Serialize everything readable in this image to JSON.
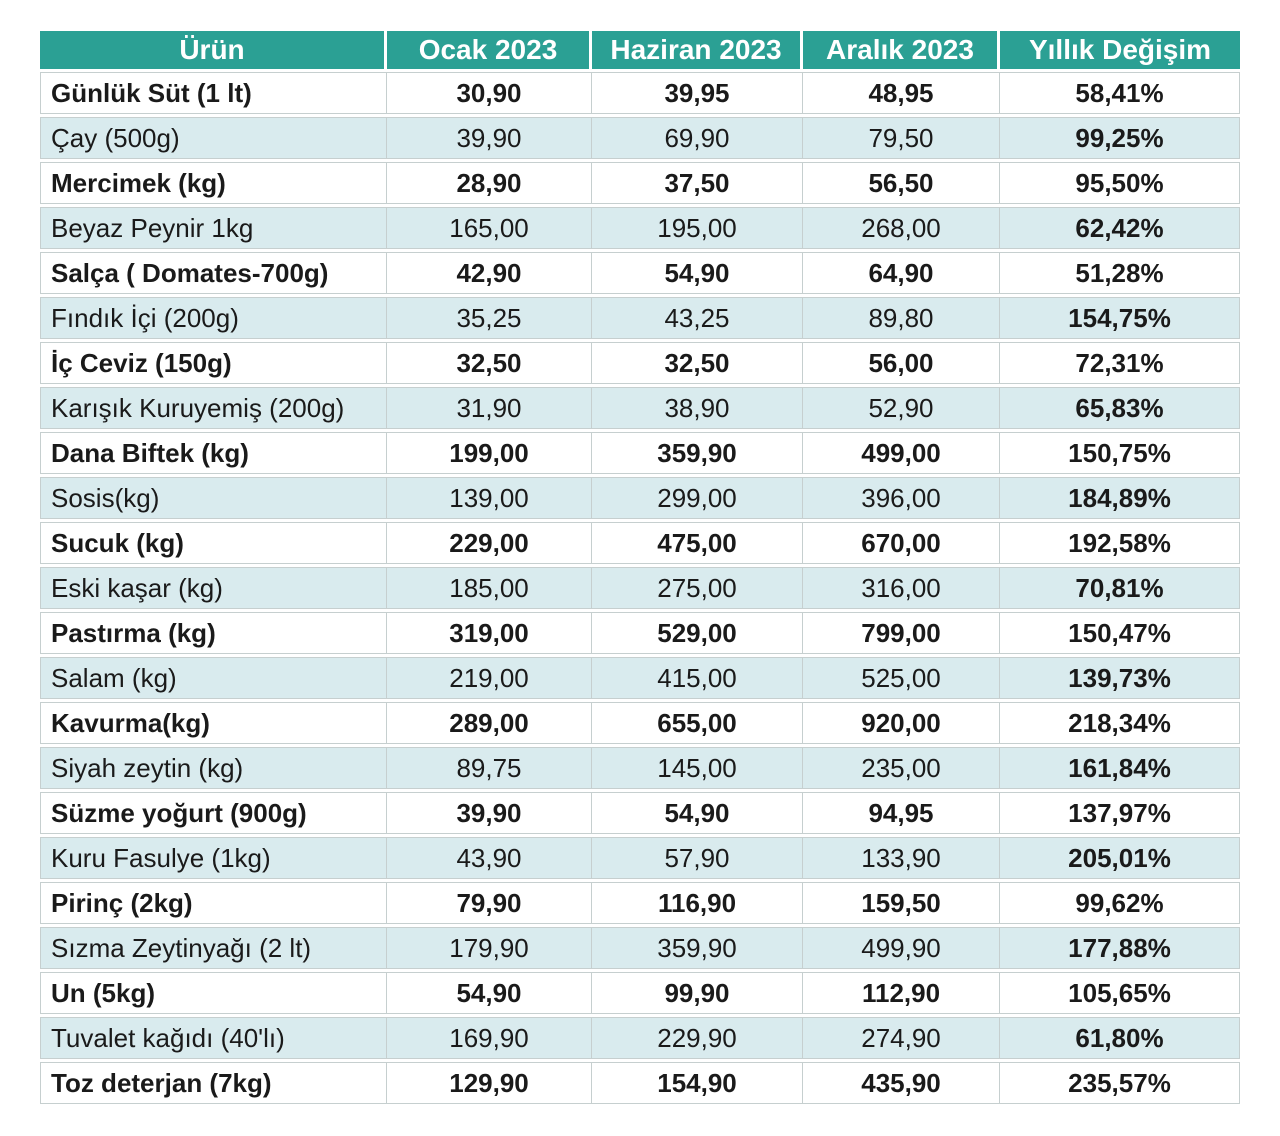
{
  "colors": {
    "header_bg": "#2BA094",
    "header_text": "#FFFFFF",
    "row_alt_bg": "#D9EBEE",
    "row_bg": "#FFFFFF",
    "body_text": "#1A1A1A",
    "grid_border": "#C6CFCF"
  },
  "chart_data": {
    "type": "table",
    "title": "",
    "columns": [
      "Ürün",
      "Ocak 2023",
      "Haziran 2023",
      "Aralık 2023",
      "Yıllık Değişim"
    ],
    "rows": [
      {
        "product": "Günlük Süt (1 lt)",
        "ocak": "30,90",
        "haziran": "39,95",
        "aralik": "48,95",
        "yillik_degisim": "58,41%",
        "bold": true
      },
      {
        "product": "Çay (500g)",
        "ocak": "39,90",
        "haziran": "69,90",
        "aralik": "79,50",
        "yillik_degisim": "99,25%",
        "bold": false
      },
      {
        "product": "Mercimek (kg)",
        "ocak": "28,90",
        "haziran": "37,50",
        "aralik": "56,50",
        "yillik_degisim": "95,50%",
        "bold": true
      },
      {
        "product": "Beyaz Peynir 1kg",
        "ocak": "165,00",
        "haziran": "195,00",
        "aralik": "268,00",
        "yillik_degisim": "62,42%",
        "bold": false
      },
      {
        "product": "Salça ( Domates-700g)",
        "ocak": "42,90",
        "haziran": "54,90",
        "aralik": "64,90",
        "yillik_degisim": "51,28%",
        "bold": true
      },
      {
        "product": "Fındık İçi (200g)",
        "ocak": "35,25",
        "haziran": "43,25",
        "aralik": "89,80",
        "yillik_degisim": "154,75%",
        "bold": false
      },
      {
        "product": "İç Ceviz (150g)",
        "ocak": "32,50",
        "haziran": "32,50",
        "aralik": "56,00",
        "yillik_degisim": "72,31%",
        "bold": true
      },
      {
        "product": "Karışık Kuruyemiş (200g)",
        "ocak": "31,90",
        "haziran": "38,90",
        "aralik": "52,90",
        "yillik_degisim": "65,83%",
        "bold": false
      },
      {
        "product": "Dana  Biftek (kg)",
        "ocak": "199,00",
        "haziran": "359,90",
        "aralik": "499,00",
        "yillik_degisim": "150,75%",
        "bold": true
      },
      {
        "product": "Sosis(kg)",
        "ocak": "139,00",
        "haziran": "299,00",
        "aralik": "396,00",
        "yillik_degisim": "184,89%",
        "bold": false
      },
      {
        "product": "Sucuk (kg)",
        "ocak": "229,00",
        "haziran": "475,00",
        "aralik": "670,00",
        "yillik_degisim": "192,58%",
        "bold": true
      },
      {
        "product": "Eski kaşar (kg)",
        "ocak": "185,00",
        "haziran": "275,00",
        "aralik": "316,00",
        "yillik_degisim": "70,81%",
        "bold": false
      },
      {
        "product": "Pastırma (kg)",
        "ocak": "319,00",
        "haziran": "529,00",
        "aralik": "799,00",
        "yillik_degisim": "150,47%",
        "bold": true
      },
      {
        "product": "Salam (kg)",
        "ocak": "219,00",
        "haziran": "415,00",
        "aralik": "525,00",
        "yillik_degisim": "139,73%",
        "bold": false
      },
      {
        "product": "Kavurma(kg)",
        "ocak": "289,00",
        "haziran": "655,00",
        "aralik": "920,00",
        "yillik_degisim": "218,34%",
        "bold": true
      },
      {
        "product": "Siyah zeytin (kg)",
        "ocak": "89,75",
        "haziran": "145,00",
        "aralik": "235,00",
        "yillik_degisim": "161,84%",
        "bold": false
      },
      {
        "product": "Süzme yoğurt (900g)",
        "ocak": "39,90",
        "haziran": "54,90",
        "aralik": "94,95",
        "yillik_degisim": "137,97%",
        "bold": true
      },
      {
        "product": "Kuru Fasulye (1kg)",
        "ocak": "43,90",
        "haziran": "57,90",
        "aralik": "133,90",
        "yillik_degisim": "205,01%",
        "bold": false
      },
      {
        "product": "Pirinç (2kg)",
        "ocak": "79,90",
        "haziran": "116,90",
        "aralik": "159,50",
        "yillik_degisim": "99,62%",
        "bold": true
      },
      {
        "product": "Sızma Zeytinyağı (2 lt)",
        "ocak": "179,90",
        "haziran": "359,90",
        "aralik": "499,90",
        "yillik_degisim": "177,88%",
        "bold": false
      },
      {
        "product": "Un (5kg)",
        "ocak": "54,90",
        "haziran": "99,90",
        "aralik": "112,90",
        "yillik_degisim": "105,65%",
        "bold": true
      },
      {
        "product": "Tuvalet kağıdı (40'lı)",
        "ocak": "169,90",
        "haziran": "229,90",
        "aralik": "274,90",
        "yillik_degisim": "61,80%",
        "bold": false
      },
      {
        "product": "Toz deterjan (7kg)",
        "ocak": "129,90",
        "haziran": "154,90",
        "aralik": "435,90",
        "yillik_degisim": "235,57%",
        "bold": true
      }
    ]
  }
}
